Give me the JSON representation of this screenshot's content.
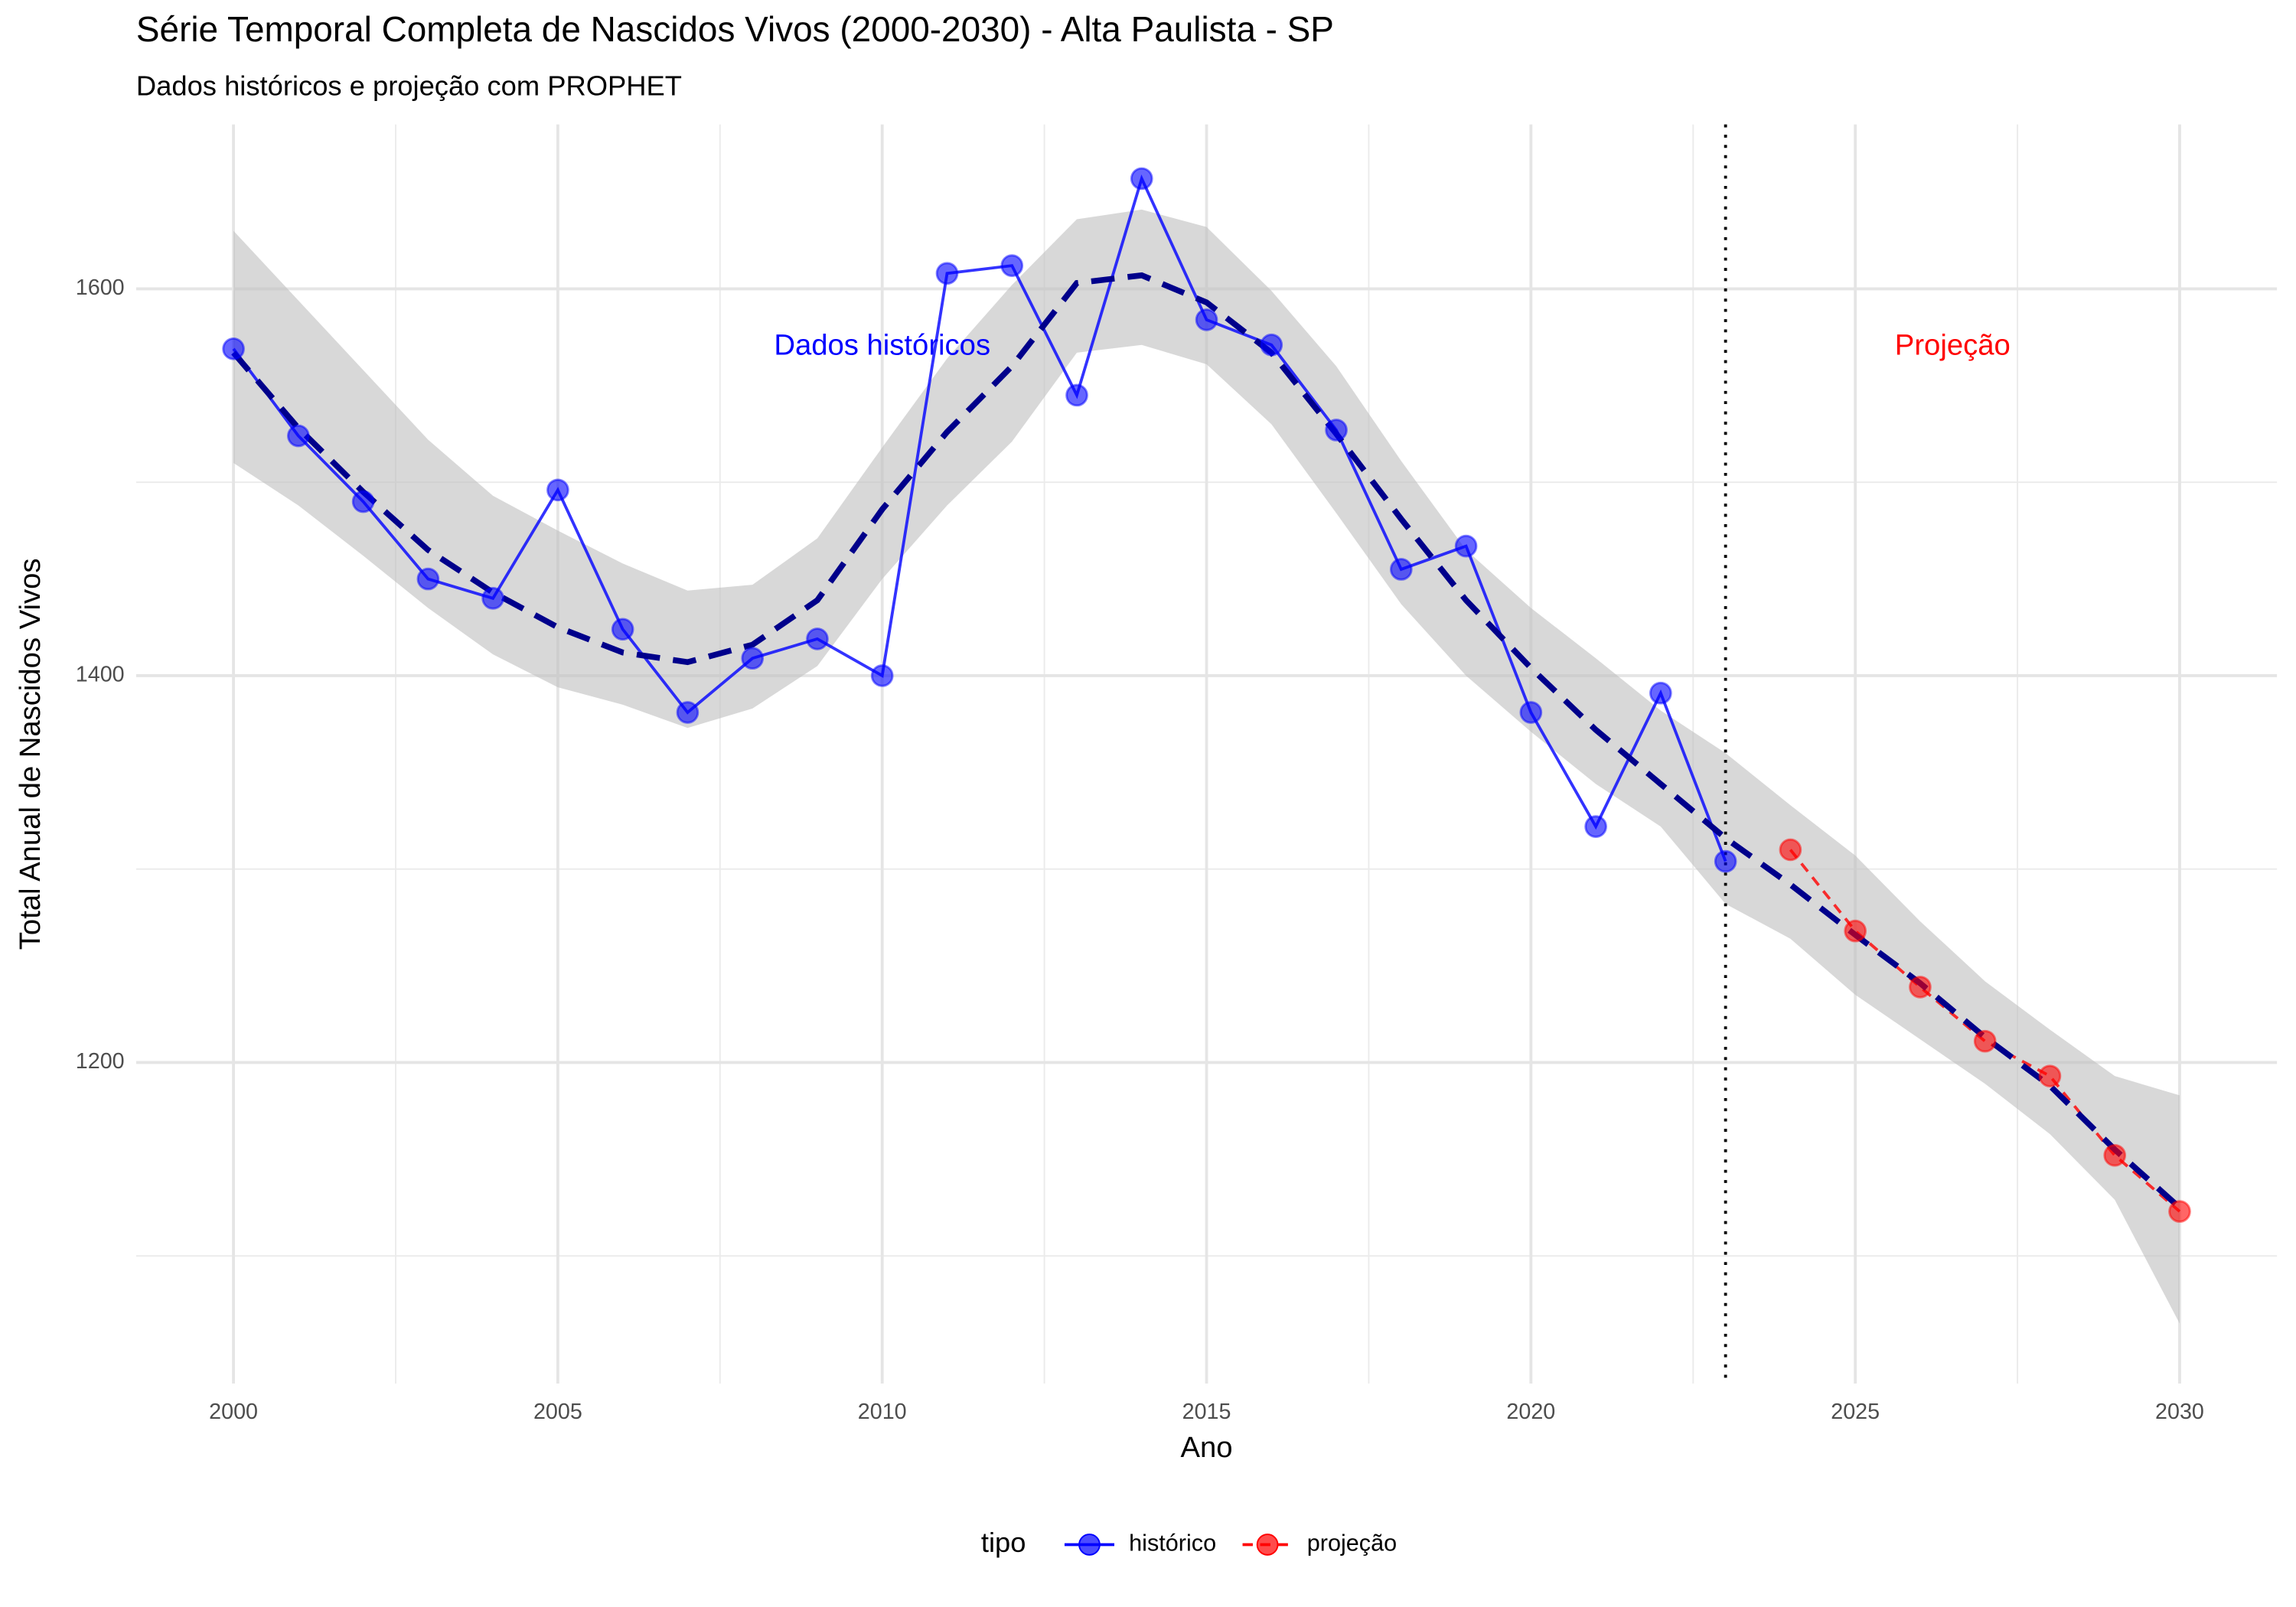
{
  "chart_data": {
    "type": "line",
    "title": "Série Temporal Completa de Nascidos Vivos (2000-2030) -  Alta Paulista - SP",
    "subtitle": "Dados históricos e projeção com PROPHET",
    "x_label": "Ano",
    "y_label": "Total Anual de Nascidos Vivos",
    "x": [
      2000,
      2001,
      2002,
      2003,
      2004,
      2005,
      2006,
      2007,
      2008,
      2009,
      2010,
      2011,
      2012,
      2013,
      2014,
      2015,
      2016,
      2017,
      2018,
      2019,
      2020,
      2021,
      2022,
      2023,
      2024,
      2025,
      2026,
      2027,
      2028,
      2029,
      2030
    ],
    "series": [
      {
        "name": "histórico",
        "color": "blue",
        "dash": false,
        "values": [
          1569,
          1524,
          1490,
          1450,
          1440,
          1496,
          1424,
          1381,
          1409,
          1419,
          1400,
          1608,
          1612,
          1545,
          1657,
          1584,
          1571,
          1527,
          1455,
          1467,
          1381,
          1322,
          1391,
          1304,
          null,
          null,
          null,
          null,
          null,
          null,
          null
        ]
      },
      {
        "name": "projeção",
        "color": "red",
        "dash": true,
        "values": [
          null,
          null,
          null,
          null,
          null,
          null,
          null,
          null,
          null,
          null,
          null,
          null,
          null,
          null,
          null,
          null,
          null,
          null,
          null,
          null,
          null,
          null,
          null,
          null,
          1310,
          1268,
          1239,
          1211,
          1193,
          1152,
          1123
        ]
      }
    ],
    "trend_color": "#00008b",
    "trend_values": [
      1567,
      1528,
      1495,
      1465,
      1443,
      1425,
      1412,
      1407,
      1416,
      1439,
      1486,
      1526,
      1560,
      1603,
      1607,
      1593,
      1567,
      1525,
      1481,
      1439,
      1404,
      1372,
      1344,
      1316,
      1292,
      1266,
      1241,
      1213,
      1188,
      1155,
      1125
    ],
    "band_lower": [
      1510,
      1488,
      1462,
      1435,
      1411,
      1394,
      1385,
      1373,
      1383,
      1405,
      1450,
      1488,
      1521,
      1567,
      1571,
      1561,
      1530,
      1484,
      1437,
      1400,
      1371,
      1344,
      1322,
      1282,
      1264,
      1235,
      1212,
      1189,
      1163,
      1129,
      1065
    ],
    "band_upper": [
      1630,
      1594,
      1558,
      1522,
      1493,
      1475,
      1458,
      1444,
      1447,
      1471,
      1518,
      1564,
      1602,
      1636,
      1641,
      1632,
      1599,
      1560,
      1511,
      1465,
      1435,
      1409,
      1382,
      1360,
      1333,
      1307,
      1273,
      1242,
      1217,
      1193,
      1183
    ],
    "cutoff_x": 2023,
    "annotations": [
      {
        "text": "Dados históricos",
        "x": 2010,
        "y": 1570,
        "color": "blue"
      },
      {
        "text": "Projeção",
        "x": 2026.5,
        "y": 1570,
        "color": "red"
      }
    ],
    "legend_title": "tipo",
    "legend_position": "bottom",
    "xlim": [
      1998.5,
      2031.5
    ],
    "ylim": [
      1034,
      1685
    ],
    "xticks": [
      2000,
      2005,
      2010,
      2015,
      2020,
      2025,
      2030
    ],
    "yticks": [
      1200,
      1400,
      1600
    ],
    "xminor": [
      2002.5,
      2007.5,
      2012.5,
      2017.5,
      2022.5,
      2027.5
    ],
    "yminor": [
      1100,
      1300,
      1500
    ],
    "grid": true
  }
}
